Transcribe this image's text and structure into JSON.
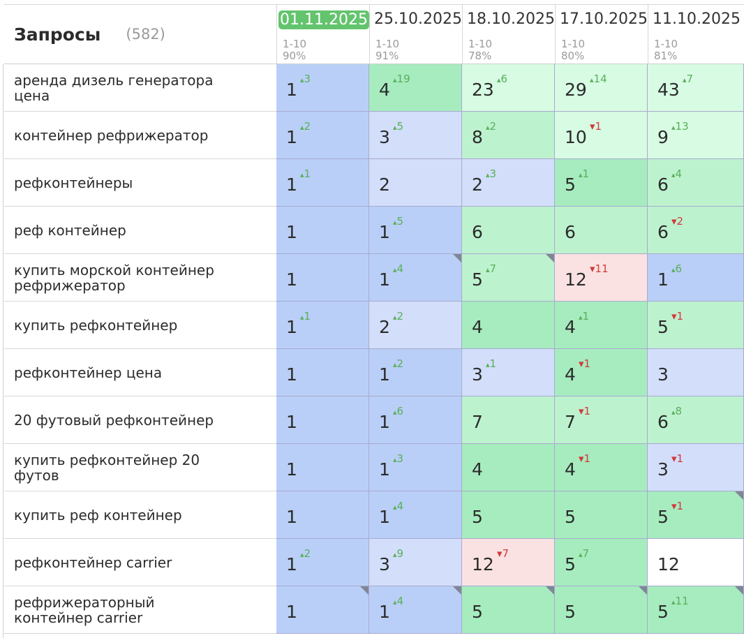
{
  "header": {
    "title": "Запросы",
    "count": "(582)"
  },
  "colors": {
    "blue_dark": "#b9cff7",
    "blue_light": "#d2defa",
    "green_dark": "#a6ecbf",
    "green_mid": "#bdf2cf",
    "green_light": "#d7fbe3",
    "red_light": "#fbe2e2",
    "white": "#ffffff",
    "active_date": "#63c46d"
  },
  "dates": [
    {
      "date": "01.11.2025",
      "range": "1-10",
      "percent": "90%",
      "active": true
    },
    {
      "date": "25.10.2025",
      "range": "1-10",
      "percent": "91%",
      "active": false
    },
    {
      "date": "18.10.2025",
      "range": "1-10",
      "percent": "78%",
      "active": false
    },
    {
      "date": "17.10.2025",
      "range": "1-10",
      "percent": "80%",
      "active": false
    },
    {
      "date": "11.10.2025",
      "range": "1-10",
      "percent": "81%",
      "active": false
    }
  ],
  "rows": [
    {
      "query": "аренда дизель генератора цена",
      "cells": [
        {
          "pos": "1",
          "delta": "3",
          "dir": "up",
          "bg": "blue_dark",
          "flag": false
        },
        {
          "pos": "4",
          "delta": "19",
          "dir": "up",
          "bg": "green_dark",
          "flag": false
        },
        {
          "pos": "23",
          "delta": "6",
          "dir": "up",
          "bg": "green_light",
          "flag": false
        },
        {
          "pos": "29",
          "delta": "14",
          "dir": "up",
          "bg": "green_light",
          "flag": false
        },
        {
          "pos": "43",
          "delta": "7",
          "dir": "up",
          "bg": "green_light",
          "flag": false
        }
      ]
    },
    {
      "query": "контейнер рефрижератор",
      "cells": [
        {
          "pos": "1",
          "delta": "2",
          "dir": "up",
          "bg": "blue_dark",
          "flag": false
        },
        {
          "pos": "3",
          "delta": "5",
          "dir": "up",
          "bg": "blue_light",
          "flag": false
        },
        {
          "pos": "8",
          "delta": "2",
          "dir": "up",
          "bg": "green_mid",
          "flag": false
        },
        {
          "pos": "10",
          "delta": "1",
          "dir": "down",
          "bg": "green_light",
          "flag": false
        },
        {
          "pos": "9",
          "delta": "13",
          "dir": "up",
          "bg": "green_light",
          "flag": false
        }
      ]
    },
    {
      "query": "рефконтейнеры",
      "cells": [
        {
          "pos": "1",
          "delta": "1",
          "dir": "up",
          "bg": "blue_dark",
          "flag": false
        },
        {
          "pos": "2",
          "delta": "",
          "dir": "",
          "bg": "blue_light",
          "flag": false
        },
        {
          "pos": "2",
          "delta": "3",
          "dir": "up",
          "bg": "blue_light",
          "flag": false
        },
        {
          "pos": "5",
          "delta": "1",
          "dir": "up",
          "bg": "green_dark",
          "flag": false
        },
        {
          "pos": "6",
          "delta": "4",
          "dir": "up",
          "bg": "green_mid",
          "flag": false
        }
      ]
    },
    {
      "query": "реф контейнер",
      "cells": [
        {
          "pos": "1",
          "delta": "",
          "dir": "",
          "bg": "blue_dark",
          "flag": false
        },
        {
          "pos": "1",
          "delta": "5",
          "dir": "up",
          "bg": "blue_dark",
          "flag": false
        },
        {
          "pos": "6",
          "delta": "",
          "dir": "",
          "bg": "green_mid",
          "flag": false
        },
        {
          "pos": "6",
          "delta": "",
          "dir": "",
          "bg": "green_mid",
          "flag": false
        },
        {
          "pos": "6",
          "delta": "2",
          "dir": "down",
          "bg": "green_mid",
          "flag": false
        }
      ]
    },
    {
      "query": "купить морской контейнер рефрижератор",
      "cells": [
        {
          "pos": "1",
          "delta": "",
          "dir": "",
          "bg": "blue_dark",
          "flag": false
        },
        {
          "pos": "1",
          "delta": "4",
          "dir": "up",
          "bg": "blue_dark",
          "flag": true
        },
        {
          "pos": "5",
          "delta": "7",
          "dir": "up",
          "bg": "green_mid",
          "flag": true
        },
        {
          "pos": "12",
          "delta": "11",
          "dir": "down",
          "bg": "red_light",
          "flag": false
        },
        {
          "pos": "1",
          "delta": "6",
          "dir": "up",
          "bg": "blue_dark",
          "flag": false
        }
      ]
    },
    {
      "query": "купить рефконтейнер",
      "cells": [
        {
          "pos": "1",
          "delta": "1",
          "dir": "up",
          "bg": "blue_dark",
          "flag": false
        },
        {
          "pos": "2",
          "delta": "2",
          "dir": "up",
          "bg": "blue_light",
          "flag": false
        },
        {
          "pos": "4",
          "delta": "",
          "dir": "",
          "bg": "green_dark",
          "flag": false
        },
        {
          "pos": "4",
          "delta": "1",
          "dir": "up",
          "bg": "green_dark",
          "flag": false
        },
        {
          "pos": "5",
          "delta": "1",
          "dir": "down",
          "bg": "green_mid",
          "flag": false
        }
      ]
    },
    {
      "query": "рефконтейнер цена",
      "cells": [
        {
          "pos": "1",
          "delta": "",
          "dir": "",
          "bg": "blue_dark",
          "flag": false
        },
        {
          "pos": "1",
          "delta": "2",
          "dir": "up",
          "bg": "blue_dark",
          "flag": false
        },
        {
          "pos": "3",
          "delta": "1",
          "dir": "up",
          "bg": "blue_light",
          "flag": false
        },
        {
          "pos": "4",
          "delta": "1",
          "dir": "down",
          "bg": "green_dark",
          "flag": false
        },
        {
          "pos": "3",
          "delta": "",
          "dir": "",
          "bg": "blue_light",
          "flag": false
        }
      ]
    },
    {
      "query": "20 футовый рефконтейнер",
      "cells": [
        {
          "pos": "1",
          "delta": "",
          "dir": "",
          "bg": "blue_dark",
          "flag": false
        },
        {
          "pos": "1",
          "delta": "6",
          "dir": "up",
          "bg": "blue_dark",
          "flag": false
        },
        {
          "pos": "7",
          "delta": "",
          "dir": "",
          "bg": "green_mid",
          "flag": false
        },
        {
          "pos": "7",
          "delta": "1",
          "dir": "down",
          "bg": "green_mid",
          "flag": false
        },
        {
          "pos": "6",
          "delta": "8",
          "dir": "up",
          "bg": "green_mid",
          "flag": false
        }
      ]
    },
    {
      "query": "купить рефконтейнер 20 футов",
      "cells": [
        {
          "pos": "1",
          "delta": "",
          "dir": "",
          "bg": "blue_dark",
          "flag": false
        },
        {
          "pos": "1",
          "delta": "3",
          "dir": "up",
          "bg": "blue_dark",
          "flag": false
        },
        {
          "pos": "4",
          "delta": "",
          "dir": "",
          "bg": "green_dark",
          "flag": false
        },
        {
          "pos": "4",
          "delta": "1",
          "dir": "down",
          "bg": "green_dark",
          "flag": false
        },
        {
          "pos": "3",
          "delta": "1",
          "dir": "down",
          "bg": "blue_light",
          "flag": false
        }
      ]
    },
    {
      "query": "купить реф контейнер",
      "cells": [
        {
          "pos": "1",
          "delta": "",
          "dir": "",
          "bg": "blue_dark",
          "flag": false
        },
        {
          "pos": "1",
          "delta": "4",
          "dir": "up",
          "bg": "blue_dark",
          "flag": false
        },
        {
          "pos": "5",
          "delta": "",
          "dir": "",
          "bg": "green_dark",
          "flag": false
        },
        {
          "pos": "5",
          "delta": "",
          "dir": "",
          "bg": "green_dark",
          "flag": false
        },
        {
          "pos": "5",
          "delta": "1",
          "dir": "down",
          "bg": "green_dark",
          "flag": true
        }
      ]
    },
    {
      "query": "рефконтейнер carrier",
      "cells": [
        {
          "pos": "1",
          "delta": "2",
          "dir": "up",
          "bg": "blue_dark",
          "flag": false
        },
        {
          "pos": "3",
          "delta": "9",
          "dir": "up",
          "bg": "blue_light",
          "flag": false
        },
        {
          "pos": "12",
          "delta": "7",
          "dir": "down",
          "bg": "red_light",
          "flag": false
        },
        {
          "pos": "5",
          "delta": "7",
          "dir": "up",
          "bg": "green_dark",
          "flag": false
        },
        {
          "pos": "12",
          "delta": "",
          "dir": "",
          "bg": "white",
          "flag": false
        }
      ]
    },
    {
      "query": "рефрижераторный контейнер carrier",
      "cells": [
        {
          "pos": "1",
          "delta": "",
          "dir": "",
          "bg": "blue_dark",
          "flag": true
        },
        {
          "pos": "1",
          "delta": "4",
          "dir": "up",
          "bg": "blue_dark",
          "flag": true
        },
        {
          "pos": "5",
          "delta": "",
          "dir": "",
          "bg": "green_dark",
          "flag": true
        },
        {
          "pos": "5",
          "delta": "",
          "dir": "",
          "bg": "green_dark",
          "flag": true
        },
        {
          "pos": "5",
          "delta": "11",
          "dir": "up",
          "bg": "green_dark",
          "flag": true
        }
      ]
    }
  ]
}
